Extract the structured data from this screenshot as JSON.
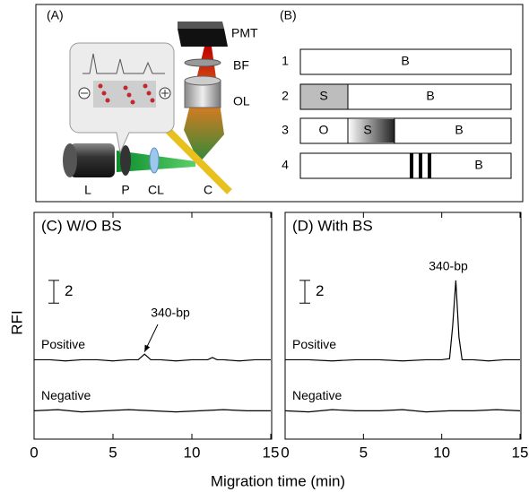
{
  "panel_a": {
    "label": "(A)",
    "pmt": "PMT",
    "bf": "BF",
    "ol": "OL",
    "laser": "L",
    "polarizer": "P",
    "lens": "CL",
    "capillary": "C"
  },
  "panel_b": {
    "label": "(B)",
    "rows": [
      {
        "number": "1",
        "zones": [
          "B"
        ]
      },
      {
        "number": "2",
        "zones": [
          "S",
          "B"
        ]
      },
      {
        "number": "3",
        "zones": [
          "O",
          "S",
          "B"
        ]
      },
      {
        "number": "4",
        "zones": [
          "B"
        ]
      }
    ]
  },
  "axes": {
    "x_label": "Migration time (min)",
    "y_label": "RFI"
  },
  "chart_data": [
    {
      "type": "line",
      "title": "(C)  W/O BS",
      "xlim": [
        0,
        15
      ],
      "xticks": [
        0,
        5,
        10,
        15
      ],
      "ylim": [
        0,
        20
      ],
      "scale_bar": {
        "value": 2,
        "base": 12
      },
      "annotation": "340-bp",
      "series": [
        {
          "name": "Positive",
          "color": "#000000",
          "x": [
            0,
            1,
            2,
            3,
            4,
            5,
            6,
            6.6,
            7,
            7.4,
            8,
            9,
            10,
            11,
            11.3,
            11.6,
            12,
            13,
            14,
            15
          ],
          "values": [
            7,
            7,
            6.9,
            7,
            7,
            6.9,
            7,
            7,
            7.5,
            7,
            7,
            6.9,
            7,
            7,
            7.2,
            7,
            7,
            6.9,
            7,
            7
          ]
        },
        {
          "name": "Negative",
          "color": "#000000",
          "x": [
            0,
            1.5,
            3,
            4.5,
            6,
            7.5,
            9,
            10.5,
            12,
            13.5,
            15
          ],
          "values": [
            2.5,
            2.6,
            2.4,
            2.5,
            2.6,
            2.5,
            2.4,
            2.5,
            2.6,
            2.5,
            2.5
          ]
        }
      ]
    },
    {
      "type": "line",
      "title": "(D)  With BS",
      "xlim": [
        0,
        15
      ],
      "xticks": [
        0,
        5,
        10,
        15
      ],
      "ylim": [
        0,
        20
      ],
      "scale_bar": {
        "value": 2,
        "base": 12
      },
      "annotation": "340-bp",
      "series": [
        {
          "name": "Positive",
          "color": "#000000",
          "x": [
            0,
            1.5,
            3,
            4.5,
            6,
            7.5,
            9,
            10,
            10.5,
            10.7,
            10.9,
            11.1,
            11.3,
            12,
            13,
            14,
            15
          ],
          "values": [
            7,
            7,
            6.9,
            7,
            7,
            6.9,
            7,
            7,
            7.1,
            10,
            14,
            9,
            7,
            7,
            6.9,
            7,
            7
          ]
        },
        {
          "name": "Negative",
          "color": "#000000",
          "x": [
            0,
            1.5,
            3,
            4.5,
            6,
            7.5,
            9,
            10.5,
            12,
            13.5,
            15
          ],
          "values": [
            2.5,
            2.4,
            2.6,
            2.5,
            2.5,
            2.6,
            2.4,
            2.5,
            2.5,
            2.6,
            2.5
          ]
        }
      ]
    }
  ]
}
